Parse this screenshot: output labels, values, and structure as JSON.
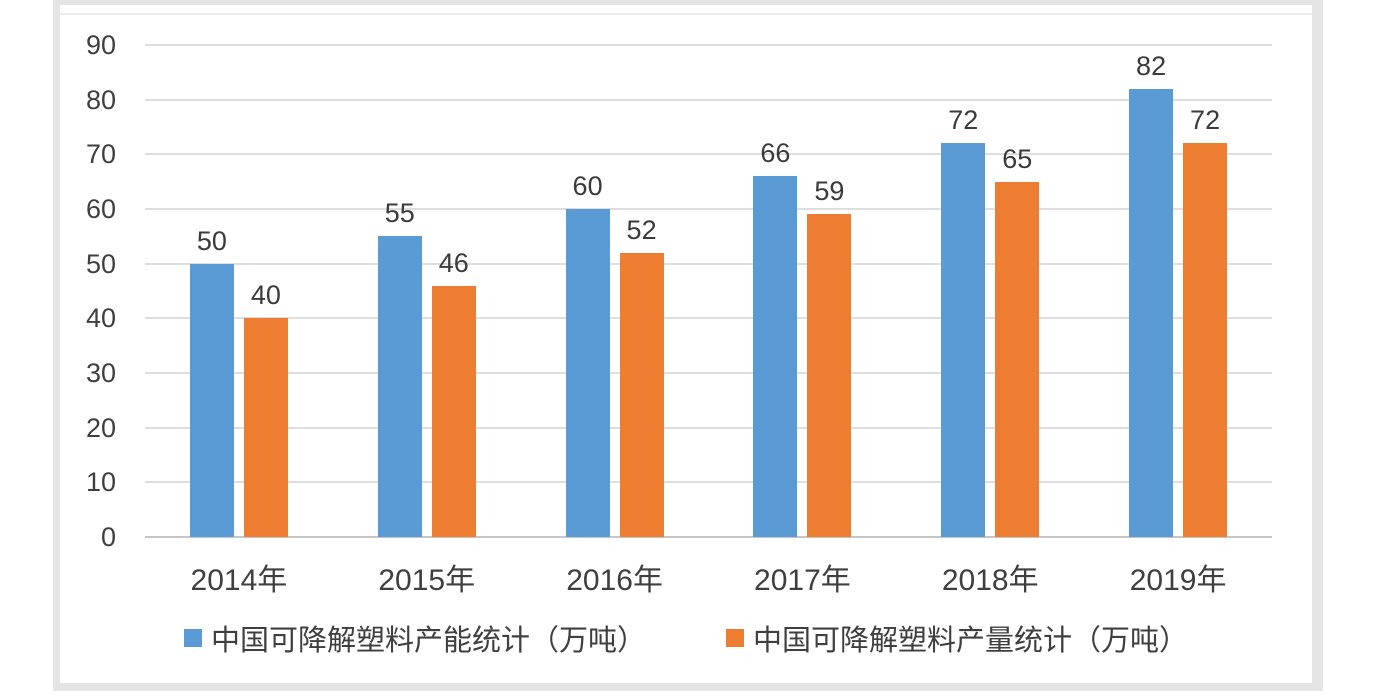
{
  "chart_data": {
    "type": "bar",
    "categories": [
      "2014年",
      "2015年",
      "2016年",
      "2017年",
      "2018年",
      "2019年"
    ],
    "series": [
      {
        "key": "capacity",
        "name": "中国可降解塑料产能统计（万吨）",
        "color": "#5B9BD5",
        "values": [
          50,
          55,
          60,
          66,
          72,
          82
        ]
      },
      {
        "key": "output",
        "name": "中国可降解塑料产量统计（万吨）",
        "color": "#ED7D31",
        "values": [
          40,
          46,
          52,
          59,
          65,
          72
        ]
      }
    ],
    "y_axis": {
      "min": 0,
      "max": 90,
      "step": 10,
      "tick_labels": [
        "0",
        "10",
        "20",
        "30",
        "40",
        "50",
        "60",
        "70",
        "80",
        "90"
      ]
    },
    "grid": true,
    "legend_position": "bottom",
    "data_labels": true
  },
  "colors": {
    "series_capacity": "#5B9BD5",
    "series_output": "#ED7D31",
    "gridline": "#dedede",
    "axis_line": "#c6c6c6",
    "label_text": "#3f3f3f",
    "frame_border": "#e5e5e5",
    "background": "#ffffff"
  }
}
